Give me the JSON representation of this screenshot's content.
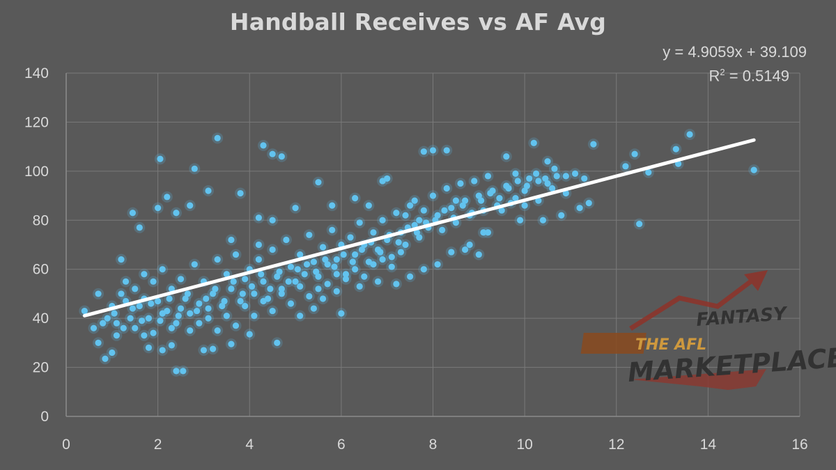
{
  "chart_data": {
    "type": "scatter",
    "title": "Handball Receives vs AF Avg",
    "xlabel": "",
    "ylabel": "",
    "xlim": [
      0,
      16
    ],
    "ylim": [
      0,
      140
    ],
    "x_ticks": [
      0,
      2,
      4,
      6,
      8,
      10,
      12,
      14,
      16
    ],
    "y_ticks": [
      0,
      20,
      40,
      60,
      80,
      100,
      120,
      140
    ],
    "x_tick_labels": [
      "0",
      "2",
      "4",
      "6",
      "8",
      "10",
      "12",
      "14",
      "16"
    ],
    "y_tick_labels": [
      "0",
      "20",
      "40",
      "60",
      "80",
      "100",
      "120",
      "140"
    ],
    "grid": true,
    "trendline": {
      "slope": 4.9059,
      "intercept": 39.109,
      "r_squared": 0.5149,
      "x_range": [
        0.4,
        15.0
      ]
    },
    "equation_text": "y = 4.9059x + 39.109",
    "r2_label": "R",
    "r2_exponent": "2",
    "r2_value_text": " = 0.5149",
    "points": [
      [
        3.3,
        113.5
      ],
      [
        4.3,
        110.5
      ],
      [
        4.5,
        107
      ],
      [
        4.7,
        106
      ],
      [
        2.05,
        105
      ],
      [
        2.8,
        101
      ],
      [
        2.2,
        89.5
      ],
      [
        1.45,
        83
      ],
      [
        3.8,
        91
      ],
      [
        3.1,
        92
      ],
      [
        5.5,
        95.5
      ],
      [
        7.0,
        97
      ],
      [
        7.8,
        108
      ],
      [
        8.0,
        108.5
      ],
      [
        8.3,
        108.5
      ],
      [
        9.6,
        106
      ],
      [
        10.2,
        111.5
      ],
      [
        11.5,
        111
      ],
      [
        12.4,
        107
      ],
      [
        13.3,
        109
      ],
      [
        13.6,
        115
      ],
      [
        15.0,
        100.5
      ],
      [
        12.5,
        78.5
      ],
      [
        12.7,
        99.5
      ],
      [
        12.2,
        102
      ],
      [
        13.35,
        103
      ],
      [
        11.1,
        99
      ],
      [
        10.5,
        104
      ],
      [
        10.3,
        96
      ],
      [
        9.8,
        99
      ],
      [
        11.4,
        87
      ],
      [
        11.3,
        97
      ],
      [
        10.8,
        82
      ],
      [
        10.4,
        80
      ],
      [
        9.9,
        80
      ],
      [
        9.1,
        75
      ],
      [
        9.0,
        66
      ],
      [
        8.7,
        68
      ],
      [
        8.5,
        88
      ],
      [
        7.6,
        88
      ],
      [
        7.7,
        80
      ],
      [
        7.4,
        82
      ],
      [
        6.9,
        96
      ],
      [
        6.6,
        86
      ],
      [
        6.3,
        89
      ],
      [
        5.8,
        86
      ],
      [
        4.2,
        81
      ],
      [
        4.5,
        80
      ],
      [
        5.0,
        85
      ],
      [
        4.2,
        70
      ],
      [
        3.6,
        72
      ],
      [
        2.0,
        85
      ],
      [
        2.4,
        83
      ],
      [
        2.7,
        86
      ],
      [
        1.6,
        77
      ],
      [
        1.2,
        64
      ],
      [
        0.7,
        50
      ],
      [
        0.4,
        43
      ],
      [
        0.6,
        36
      ],
      [
        0.7,
        30
      ],
      [
        0.85,
        23.5
      ],
      [
        1.0,
        26
      ],
      [
        1.1,
        33
      ],
      [
        1.7,
        33
      ],
      [
        1.8,
        28
      ],
      [
        2.1,
        27
      ],
      [
        2.3,
        29
      ],
      [
        2.4,
        18.5
      ],
      [
        2.55,
        18.5
      ],
      [
        3.0,
        27
      ],
      [
        3.2,
        27.5
      ],
      [
        3.6,
        29.5
      ],
      [
        4.0,
        33.5
      ],
      [
        4.6,
        30
      ],
      [
        5.1,
        41
      ],
      [
        5.4,
        44
      ],
      [
        5.6,
        48
      ],
      [
        6.0,
        42
      ],
      [
        5.9,
        51
      ],
      [
        6.4,
        53
      ],
      [
        6.8,
        55
      ],
      [
        7.2,
        54
      ],
      [
        7.5,
        57
      ],
      [
        7.8,
        60
      ],
      [
        8.1,
        62
      ],
      [
        8.4,
        67
      ],
      [
        8.8,
        70
      ],
      [
        9.2,
        75
      ],
      [
        9.5,
        84
      ],
      [
        9.7,
        87
      ],
      [
        10.0,
        86
      ],
      [
        10.6,
        93
      ],
      [
        10.9,
        98
      ],
      [
        11.2,
        85
      ],
      [
        0.9,
        40
      ],
      [
        1.0,
        45
      ],
      [
        1.2,
        50
      ],
      [
        1.3,
        47
      ],
      [
        1.4,
        40
      ],
      [
        1.5,
        52
      ],
      [
        1.6,
        45
      ],
      [
        1.7,
        58
      ],
      [
        1.8,
        40
      ],
      [
        1.9,
        55
      ],
      [
        2.0,
        47
      ],
      [
        2.1,
        60
      ],
      [
        2.2,
        43
      ],
      [
        2.3,
        52
      ],
      [
        2.4,
        38
      ],
      [
        2.5,
        56
      ],
      [
        2.6,
        48
      ],
      [
        2.7,
        42
      ],
      [
        2.8,
        62
      ],
      [
        2.9,
        46
      ],
      [
        3.0,
        55
      ],
      [
        3.1,
        40
      ],
      [
        3.2,
        50
      ],
      [
        3.3,
        64
      ],
      [
        3.4,
        45
      ],
      [
        3.5,
        58
      ],
      [
        3.6,
        52
      ],
      [
        3.7,
        66
      ],
      [
        3.8,
        47
      ],
      [
        3.9,
        56
      ],
      [
        4.0,
        60
      ],
      [
        4.1,
        50
      ],
      [
        4.2,
        64
      ],
      [
        4.3,
        55
      ],
      [
        4.4,
        48
      ],
      [
        4.5,
        68
      ],
      [
        4.6,
        57
      ],
      [
        4.7,
        52
      ],
      [
        4.8,
        72
      ],
      [
        4.9,
        61
      ],
      [
        5.0,
        55
      ],
      [
        5.1,
        66
      ],
      [
        5.2,
        58
      ],
      [
        5.3,
        74
      ],
      [
        5.4,
        63
      ],
      [
        5.5,
        57
      ],
      [
        5.6,
        69
      ],
      [
        5.7,
        62
      ],
      [
        5.8,
        76
      ],
      [
        5.9,
        64
      ],
      [
        6.0,
        70
      ],
      [
        6.1,
        58
      ],
      [
        6.2,
        73
      ],
      [
        6.3,
        66
      ],
      [
        6.4,
        79
      ],
      [
        6.5,
        70
      ],
      [
        6.6,
        63
      ],
      [
        6.7,
        75
      ],
      [
        6.8,
        68
      ],
      [
        6.9,
        80
      ],
      [
        7.0,
        72
      ],
      [
        7.1,
        65
      ],
      [
        7.2,
        83
      ],
      [
        7.3,
        75
      ],
      [
        7.4,
        70
      ],
      [
        7.5,
        86
      ],
      [
        7.6,
        78
      ],
      [
        7.7,
        73
      ],
      [
        7.8,
        84
      ],
      [
        7.9,
        77
      ],
      [
        8.0,
        90
      ],
      [
        8.1,
        82
      ],
      [
        8.2,
        76
      ],
      [
        8.3,
        93
      ],
      [
        8.4,
        85
      ],
      [
        8.5,
        79
      ],
      [
        8.6,
        95
      ],
      [
        8.7,
        88
      ],
      [
        8.8,
        82
      ],
      [
        8.9,
        96
      ],
      [
        9.0,
        90
      ],
      [
        9.1,
        84
      ],
      [
        9.2,
        98
      ],
      [
        9.3,
        92
      ],
      [
        9.4,
        86
      ],
      [
        9.6,
        94
      ],
      [
        9.8,
        89
      ],
      [
        10.0,
        92
      ],
      [
        10.1,
        97
      ],
      [
        10.3,
        88
      ],
      [
        10.5,
        95
      ],
      [
        10.7,
        98
      ],
      [
        10.9,
        91
      ],
      [
        1.1,
        38
      ],
      [
        1.3,
        55
      ],
      [
        1.5,
        36
      ],
      [
        1.7,
        48
      ],
      [
        1.9,
        34
      ],
      [
        2.1,
        42
      ],
      [
        2.3,
        36
      ],
      [
        2.5,
        44
      ],
      [
        2.7,
        35
      ],
      [
        2.9,
        38
      ],
      [
        3.1,
        44
      ],
      [
        3.3,
        35
      ],
      [
        3.5,
        41
      ],
      [
        3.7,
        37
      ],
      [
        3.9,
        45
      ],
      [
        4.1,
        41
      ],
      [
        4.3,
        47
      ],
      [
        4.5,
        43
      ],
      [
        4.7,
        50
      ],
      [
        4.9,
        46
      ],
      [
        5.1,
        53
      ],
      [
        5.3,
        49
      ],
      [
        5.5,
        52
      ],
      [
        5.7,
        54
      ],
      [
        5.9,
        58
      ],
      [
        6.1,
        56
      ],
      [
        6.3,
        60
      ],
      [
        6.5,
        57
      ],
      [
        6.7,
        62
      ],
      [
        6.9,
        64
      ],
      [
        7.1,
        61
      ],
      [
        7.3,
        67
      ],
      [
        0.8,
        38
      ],
      [
        1.05,
        42
      ],
      [
        1.25,
        36
      ],
      [
        1.45,
        44
      ],
      [
        1.65,
        39
      ],
      [
        1.85,
        46
      ],
      [
        2.05,
        39
      ],
      [
        2.25,
        48
      ],
      [
        2.45,
        41
      ],
      [
        2.65,
        50
      ],
      [
        2.85,
        43
      ],
      [
        3.05,
        48
      ],
      [
        3.25,
        52
      ],
      [
        3.45,
        47
      ],
      [
        3.65,
        55
      ],
      [
        3.85,
        50
      ],
      [
        4.05,
        53
      ],
      [
        4.25,
        58
      ],
      [
        4.45,
        52
      ],
      [
        4.65,
        59
      ],
      [
        4.85,
        55
      ],
      [
        5.05,
        60
      ],
      [
        5.25,
        62
      ],
      [
        5.45,
        59
      ],
      [
        5.65,
        64
      ],
      [
        5.85,
        61
      ],
      [
        6.05,
        66
      ],
      [
        6.25,
        63
      ],
      [
        6.45,
        68
      ],
      [
        6.65,
        71
      ],
      [
        6.85,
        67
      ],
      [
        7.05,
        74
      ],
      [
        7.25,
        71
      ],
      [
        7.45,
        77
      ],
      [
        7.65,
        75
      ],
      [
        7.85,
        79
      ],
      [
        8.05,
        80
      ],
      [
        8.25,
        84
      ],
      [
        8.45,
        81
      ],
      [
        8.65,
        86
      ],
      [
        8.85,
        83
      ],
      [
        9.05,
        88
      ],
      [
        9.25,
        91
      ],
      [
        9.45,
        89
      ],
      [
        9.65,
        93
      ],
      [
        9.85,
        96
      ],
      [
        10.05,
        94
      ],
      [
        10.25,
        99
      ],
      [
        10.45,
        97
      ],
      [
        10.65,
        101
      ]
    ]
  }
}
